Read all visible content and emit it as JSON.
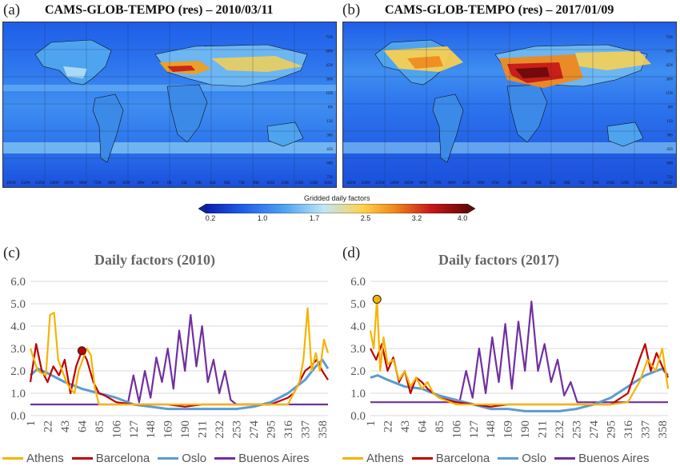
{
  "panels": {
    "a": {
      "letter": "(a)",
      "title": "CAMS-GLOB-TEMPO (res) – 2010/03/11"
    },
    "b": {
      "letter": "(b)",
      "title": "CAMS-GLOB-TEMPO (res) – 2017/01/09"
    },
    "c": {
      "letter": "(c)"
    },
    "d": {
      "letter": "(d)"
    }
  },
  "map_axes": {
    "lon_labels": [
      "165W",
      "150W",
      "135W",
      "120W",
      "105W",
      "90W",
      "75W",
      "60W",
      "45W",
      "30W",
      "15W",
      "0E",
      "15E",
      "30E",
      "45E",
      "60E",
      "75E",
      "90E",
      "105E",
      "120E",
      "135E",
      "150E",
      "165E"
    ],
    "lat_labels": [
      "75N",
      "60N",
      "45N",
      "30N",
      "15N",
      "0N",
      "15S",
      "30S",
      "45S",
      "60S",
      "75S"
    ]
  },
  "colorbar": {
    "title": "Gridded daily factors",
    "ticks": [
      "0.2",
      "1.0",
      "1.7",
      "2.5",
      "3.2",
      "4.0"
    ],
    "colors": [
      "#0a1fb0",
      "#1f5ee8",
      "#4fa4f0",
      "#bfe6f5",
      "#ffd24a",
      "#f08a1c",
      "#c81818",
      "#6a0808"
    ]
  },
  "legend": [
    {
      "name": "Athens",
      "color": "#f5b400"
    },
    {
      "name": "Barcelona",
      "color": "#c00000"
    },
    {
      "name": "Oslo",
      "color": "#5b9bd5"
    },
    {
      "name": "Buenos Aires",
      "color": "#7030a0"
    }
  ],
  "chart_data": [
    {
      "type": "line",
      "title": "Daily factors (2010)",
      "ylim": [
        0,
        6
      ],
      "yticks": [
        "0.0",
        "1.0",
        "2.0",
        "3.0",
        "4.0",
        "5.0",
        "6.0"
      ],
      "xticks": [
        "1",
        "22",
        "43",
        "64",
        "85",
        "106",
        "127",
        "148",
        "169",
        "190",
        "211",
        "232",
        "253",
        "274",
        "295",
        "316",
        "337",
        "358"
      ],
      "grid": true,
      "marker": {
        "series": "Barcelona",
        "x": 64,
        "y": 2.9
      },
      "series": [
        {
          "name": "Athens",
          "x": [
            1,
            10,
            20,
            25,
            30,
            35,
            40,
            45,
            50,
            55,
            60,
            64,
            70,
            75,
            80,
            85,
            90,
            106,
            127,
            148,
            169,
            190,
            211,
            232,
            253,
            274,
            295,
            316,
            330,
            335,
            340,
            345,
            350,
            355,
            360,
            365
          ],
          "values": [
            3.0,
            2.0,
            1.8,
            4.5,
            4.6,
            2.5,
            2.0,
            1.5,
            1.2,
            1.0,
            2.0,
            2.4,
            3.0,
            2.7,
            1.2,
            0.5,
            0.5,
            0.5,
            0.5,
            0.5,
            0.5,
            0.5,
            0.5,
            0.5,
            0.5,
            0.5,
            0.5,
            0.5,
            1.5,
            2.5,
            4.8,
            2.0,
            2.8,
            2.0,
            3.4,
            2.8
          ]
        },
        {
          "name": "Barcelona",
          "x": [
            1,
            8,
            15,
            22,
            29,
            36,
            43,
            50,
            57,
            64,
            70,
            78,
            85,
            92,
            106,
            127,
            148,
            169,
            190,
            211,
            232,
            253,
            274,
            295,
            316,
            323,
            330,
            337,
            344,
            351,
            358,
            365
          ],
          "values": [
            1.5,
            3.2,
            2.0,
            1.5,
            2.2,
            1.8,
            2.5,
            1.0,
            2.2,
            2.9,
            2.5,
            1.5,
            1.0,
            0.9,
            0.6,
            0.5,
            0.5,
            0.5,
            0.4,
            0.5,
            0.5,
            0.5,
            0.5,
            0.5,
            0.8,
            1.0,
            1.5,
            2.0,
            2.2,
            2.5,
            2.0,
            1.6
          ]
        },
        {
          "name": "Oslo",
          "x": [
            1,
            10,
            22,
            43,
            64,
            85,
            106,
            127,
            148,
            169,
            190,
            211,
            232,
            253,
            274,
            295,
            316,
            337,
            350,
            358,
            365
          ],
          "values": [
            1.8,
            2.1,
            1.9,
            1.5,
            1.2,
            1.0,
            0.8,
            0.5,
            0.4,
            0.3,
            0.3,
            0.3,
            0.3,
            0.3,
            0.4,
            0.6,
            1.0,
            1.6,
            2.2,
            2.5,
            2.1
          ]
        },
        {
          "name": "Buenos Aires",
          "x": [
            1,
            64,
            120,
            127,
            134,
            141,
            148,
            155,
            162,
            169,
            176,
            183,
            190,
            197,
            204,
            211,
            218,
            225,
            232,
            239,
            246,
            253,
            274,
            365
          ],
          "values": [
            0.5,
            0.5,
            0.5,
            1.8,
            0.6,
            2.0,
            0.8,
            2.6,
            1.5,
            3.0,
            1.2,
            3.8,
            2.0,
            4.5,
            2.2,
            4.0,
            1.5,
            2.5,
            1.0,
            2.0,
            0.7,
            0.5,
            0.5,
            0.5
          ]
        }
      ]
    },
    {
      "type": "line",
      "title": "Daily factors (2017)",
      "ylim": [
        0,
        6
      ],
      "yticks": [
        "0.0",
        "1.0",
        "2.0",
        "3.0",
        "4.0",
        "5.0",
        "6.0"
      ],
      "xticks": [
        "1",
        "22",
        "43",
        "64",
        "85",
        "106",
        "127",
        "148",
        "169",
        "190",
        "211",
        "232",
        "253",
        "274",
        "295",
        "316",
        "337",
        "358"
      ],
      "grid": true,
      "marker": {
        "series": "Athens",
        "x": 9,
        "y": 5.2
      },
      "series": [
        {
          "name": "Athens",
          "x": [
            1,
            5,
            9,
            13,
            17,
            22,
            29,
            36,
            43,
            50,
            57,
            64,
            71,
            78,
            85,
            106,
            127,
            148,
            169,
            190,
            211,
            232,
            253,
            274,
            295,
            316,
            330,
            340,
            350,
            358,
            365
          ],
          "values": [
            3.8,
            3.0,
            5.2,
            2.0,
            3.5,
            2.3,
            2.5,
            1.6,
            2.0,
            1.3,
            1.7,
            1.2,
            1.5,
            1.0,
            0.8,
            0.5,
            0.5,
            0.5,
            0.5,
            0.5,
            0.5,
            0.5,
            0.5,
            0.5,
            0.5,
            0.6,
            1.5,
            2.5,
            2.0,
            3.0,
            1.2
          ]
        },
        {
          "name": "Barcelona",
          "x": [
            1,
            8,
            15,
            22,
            29,
            36,
            43,
            50,
            57,
            64,
            71,
            85,
            106,
            127,
            148,
            169,
            190,
            211,
            232,
            253,
            274,
            295,
            316,
            330,
            337,
            344,
            351,
            358,
            365
          ],
          "values": [
            3.0,
            2.5,
            3.2,
            2.0,
            2.6,
            1.5,
            2.0,
            1.0,
            1.7,
            1.5,
            1.2,
            0.8,
            0.6,
            0.5,
            0.4,
            0.5,
            0.5,
            0.5,
            0.5,
            0.5,
            0.5,
            0.5,
            1.0,
            2.5,
            3.2,
            2.0,
            2.8,
            2.2,
            1.7
          ]
        },
        {
          "name": "Oslo",
          "x": [
            1,
            10,
            22,
            43,
            64,
            85,
            106,
            127,
            148,
            169,
            190,
            211,
            232,
            253,
            274,
            295,
            316,
            337,
            358,
            365
          ],
          "values": [
            1.7,
            1.8,
            1.6,
            1.3,
            1.2,
            0.9,
            0.7,
            0.5,
            0.3,
            0.3,
            0.2,
            0.2,
            0.2,
            0.3,
            0.5,
            0.8,
            1.3,
            1.8,
            2.1,
            1.8
          ]
        },
        {
          "name": "Buenos Aires",
          "x": [
            1,
            110,
            118,
            126,
            134,
            142,
            150,
            158,
            166,
            174,
            182,
            190,
            198,
            206,
            214,
            222,
            230,
            238,
            246,
            254,
            262,
            270,
            365
          ],
          "values": [
            0.6,
            0.6,
            2.0,
            0.8,
            3.0,
            1.0,
            3.5,
            1.5,
            4.1,
            1.2,
            4.2,
            2.0,
            5.1,
            2.0,
            3.2,
            1.5,
            2.5,
            0.9,
            1.5,
            0.6,
            0.6,
            0.6,
            0.6
          ]
        }
      ]
    }
  ]
}
